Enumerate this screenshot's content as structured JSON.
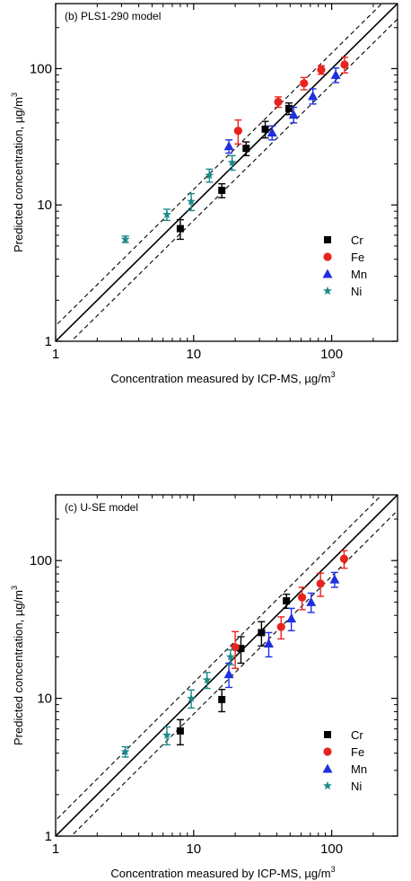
{
  "chart_data": [
    {
      "type": "scatter",
      "panel_label": "(b) PLS1-290 model",
      "xlabel": "Concentration measured by ICP-MS, µg/m",
      "xlabel_sup": "3",
      "ylabel": "Predicted concentration, µg/m",
      "ylabel_sup": "3",
      "xscale": "log",
      "yscale": "log",
      "xlim": [
        1,
        300
      ],
      "ylim": [
        1,
        300
      ],
      "xticks": [
        {
          "v": 1,
          "label": "1"
        },
        {
          "v": 10,
          "label": "10"
        },
        {
          "v": 100,
          "label": "100"
        }
      ],
      "yticks": [
        {
          "v": 1,
          "label": "1"
        },
        {
          "v": 10,
          "label": "10"
        },
        {
          "v": 100,
          "label": "100"
        }
      ],
      "reference_lines": [
        {
          "style": "solid",
          "factor": 1
        },
        {
          "style": "dashed",
          "factor": 1.3
        },
        {
          "style": "dashed",
          "factor": 0.77
        }
      ],
      "legend_position": "bottom-right",
      "series": [
        {
          "name": "Cr",
          "marker": "square",
          "color": "#000000",
          "points": [
            {
              "x": 8,
              "y": 6.7,
              "err": 1.1
            },
            {
              "x": 16,
              "y": 12.8,
              "err": 1.5
            },
            {
              "x": 24,
              "y": 26,
              "err": 3
            },
            {
              "x": 33,
              "y": 36,
              "err": 5
            },
            {
              "x": 49,
              "y": 51,
              "err": 5
            }
          ]
        },
        {
          "name": "Fe",
          "marker": "circle",
          "color": "#e8231e",
          "points": [
            {
              "x": 21,
              "y": 35,
              "err": 7
            },
            {
              "x": 41,
              "y": 57,
              "err": 5
            },
            {
              "x": 63,
              "y": 78,
              "err": 8
            },
            {
              "x": 84,
              "y": 98,
              "err": 7
            },
            {
              "x": 124,
              "y": 107,
              "err": 14
            }
          ]
        },
        {
          "name": "Mn",
          "marker": "triangle",
          "color": "#1f2fe0",
          "points": [
            {
              "x": 18,
              "y": 27,
              "err": 3
            },
            {
              "x": 37,
              "y": 34,
              "err": 4
            },
            {
              "x": 53,
              "y": 46,
              "err": 6
            },
            {
              "x": 73,
              "y": 63,
              "err": 8
            },
            {
              "x": 107,
              "y": 90,
              "err": 11
            }
          ]
        },
        {
          "name": "Ni",
          "marker": "star",
          "color": "#1e8a8a",
          "points": [
            {
              "x": 3.2,
              "y": 5.6,
              "err": 0.3
            },
            {
              "x": 6.4,
              "y": 8.5,
              "err": 0.8
            },
            {
              "x": 9.6,
              "y": 10.6,
              "err": 1.5
            },
            {
              "x": 13,
              "y": 16.5,
              "err": 1.8
            },
            {
              "x": 19,
              "y": 20.5,
              "err": 2.5
            }
          ]
        }
      ]
    },
    {
      "type": "scatter",
      "panel_label": "(c) U-SE model",
      "xlabel": "Concentration measured by ICP-MS, µg/m",
      "xlabel_sup": "3",
      "ylabel": "Predicted concentration, µg/m",
      "ylabel_sup": "3",
      "xscale": "log",
      "yscale": "log",
      "xlim": [
        1,
        300
      ],
      "ylim": [
        1,
        300
      ],
      "xticks": [
        {
          "v": 1,
          "label": "1"
        },
        {
          "v": 10,
          "label": "10"
        },
        {
          "v": 100,
          "label": "100"
        }
      ],
      "yticks": [
        {
          "v": 1,
          "label": "1"
        },
        {
          "v": 10,
          "label": "10"
        },
        {
          "v": 100,
          "label": "100"
        }
      ],
      "reference_lines": [
        {
          "style": "solid",
          "factor": 1
        },
        {
          "style": "dashed",
          "factor": 1.3
        },
        {
          "style": "dashed",
          "factor": 0.77
        }
      ],
      "legend_position": "bottom-right",
      "series": [
        {
          "name": "Cr",
          "marker": "square",
          "color": "#000000",
          "points": [
            {
              "x": 8,
              "y": 5.8,
              "err": 1.2
            },
            {
              "x": 16,
              "y": 9.8,
              "err": 1.8
            },
            {
              "x": 22,
              "y": 23,
              "err": 5
            },
            {
              "x": 31,
              "y": 30,
              "err": 6
            },
            {
              "x": 47,
              "y": 51,
              "err": 6
            }
          ]
        },
        {
          "name": "Fe",
          "marker": "circle",
          "color": "#e8231e",
          "points": [
            {
              "x": 20,
              "y": 23.5,
              "err": 7
            },
            {
              "x": 43,
              "y": 33,
              "err": 6
            },
            {
              "x": 61,
              "y": 54,
              "err": 10
            },
            {
              "x": 83,
              "y": 68,
              "err": 13
            },
            {
              "x": 123,
              "y": 103,
              "err": 15
            }
          ]
        },
        {
          "name": "Mn",
          "marker": "triangle",
          "color": "#1f2fe0",
          "points": [
            {
              "x": 18,
              "y": 15,
              "err": 3
            },
            {
              "x": 35,
              "y": 25,
              "err": 5
            },
            {
              "x": 51,
              "y": 38,
              "err": 7
            },
            {
              "x": 71,
              "y": 50,
              "err": 8
            },
            {
              "x": 105,
              "y": 73,
              "err": 9
            }
          ]
        },
        {
          "name": "Ni",
          "marker": "star",
          "color": "#1e8a8a",
          "points": [
            {
              "x": 3.2,
              "y": 4.1,
              "err": 0.35
            },
            {
              "x": 6.4,
              "y": 5.4,
              "err": 0.8
            },
            {
              "x": 9.6,
              "y": 10,
              "err": 1.5
            },
            {
              "x": 12.5,
              "y": 13.6,
              "err": 1.8
            },
            {
              "x": 18.5,
              "y": 20,
              "err": 2.5
            }
          ]
        }
      ]
    }
  ]
}
